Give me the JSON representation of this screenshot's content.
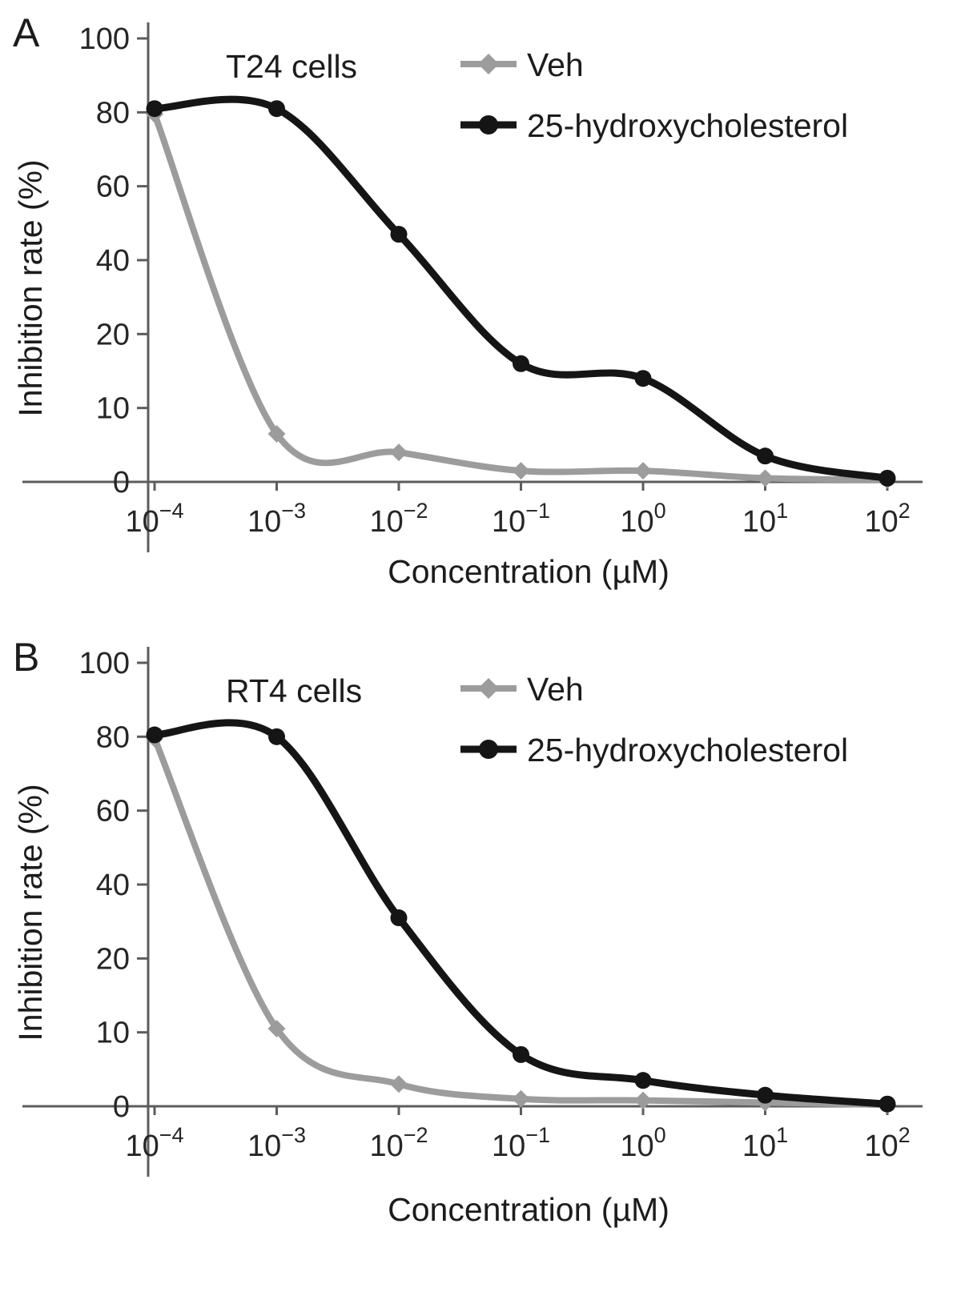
{
  "chart_data": [
    {
      "type": "line",
      "panel_label": "A",
      "title": "T24 cells",
      "xlabel": "Concentration (µM)",
      "ylabel": "Inhibition rate (%)",
      "x_scale": "log",
      "x_values": [
        0.0001,
        0.001,
        0.01,
        0.1,
        1,
        10,
        100
      ],
      "x_tick_exponents": [
        -4,
        -3,
        -2,
        -1,
        0,
        1,
        2
      ],
      "y_ticks": [
        0,
        10,
        20,
        40,
        60,
        80,
        100
      ],
      "y_scale": "equal-spaced-ticks",
      "grid": false,
      "legend_position": "top-right",
      "axis_color": "#5c5c5c",
      "series": [
        {
          "name": "Veh",
          "color": "#9c9c9c",
          "marker": "diamond",
          "values": [
            79.5,
            6.5,
            4,
            1.5,
            1.5,
            0.5,
            0.3
          ]
        },
        {
          "name": "25-hydroxycholesterol",
          "color": "#151515",
          "marker": "circle",
          "values": [
            81,
            81,
            47,
            16,
            14,
            3.5,
            0.5
          ]
        }
      ]
    },
    {
      "type": "line",
      "panel_label": "B",
      "title": "RT4 cells",
      "xlabel": "Concentration (µM)",
      "ylabel": "Inhibition rate (%)",
      "x_scale": "log",
      "x_values": [
        0.0001,
        0.001,
        0.01,
        0.1,
        1,
        10,
        100
      ],
      "x_tick_exponents": [
        -4,
        -3,
        -2,
        -1,
        0,
        1,
        2
      ],
      "y_ticks": [
        0,
        10,
        20,
        40,
        60,
        80,
        100
      ],
      "y_scale": "equal-spaced-ticks",
      "grid": false,
      "legend_position": "top-right",
      "axis_color": "#5c5c5c",
      "series": [
        {
          "name": "Veh",
          "color": "#9c9c9c",
          "marker": "diamond",
          "values": [
            79.5,
            10.5,
            3,
            1,
            0.8,
            0.5,
            0.2
          ]
        },
        {
          "name": "25-hydroxycholesterol",
          "color": "#151515",
          "marker": "circle",
          "values": [
            80.5,
            80,
            31,
            7,
            3.5,
            1.5,
            0.3
          ]
        }
      ]
    }
  ]
}
